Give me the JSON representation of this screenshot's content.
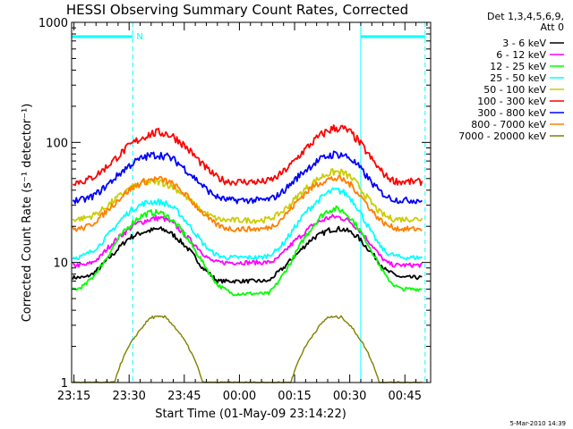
{
  "chart_data": {
    "type": "line",
    "title": "HESSI Observing Summary Count Rates, Corrected",
    "xlabel": "Start Time (01-May-09 23:14:22)",
    "ylabel": "Corrected Count Rate (s⁻¹ detector⁻¹)",
    "y_scale": "log",
    "ylim": [
      1,
      1000
    ],
    "y_ticks": [
      "1",
      "10",
      "100",
      "1000"
    ],
    "xlim": [
      "23:14:22",
      "00:52:00"
    ],
    "x_ticks": [
      "23:15",
      "23:30",
      "23:45",
      "00:00",
      "00:15",
      "00:30",
      "00:45"
    ],
    "grid": false,
    "legend_position": "right, outside plot",
    "legend_header": [
      "Det 1,3,4,5,6,9,",
      "Att 0"
    ],
    "annotation_text": "N",
    "night_segments": [
      [
        "23:14:22",
        "23:31:00"
      ],
      [
        "00:33:00",
        "00:50:30"
      ]
    ],
    "night_marker_color": "#00ffff",
    "timestamp": "5-Mar-2010 14:39",
    "sample_times": [
      "23:14",
      "23:16",
      "23:18",
      "23:20",
      "23:22",
      "23:24",
      "23:26",
      "23:28",
      "23:30",
      "23:32",
      "23:34",
      "23:36",
      "23:38",
      "23:40",
      "23:42",
      "23:44",
      "23:46",
      "23:48",
      "23:50",
      "23:52",
      "23:54",
      "23:56",
      "23:58",
      "00:00",
      "00:02",
      "00:04",
      "00:06",
      "00:08",
      "00:10",
      "00:12",
      "00:14",
      "00:16",
      "00:18",
      "00:20",
      "00:22",
      "00:24",
      "00:26",
      "00:28",
      "00:30",
      "00:32",
      "00:34",
      "00:36",
      "00:38",
      "00:40",
      "00:42",
      "00:44",
      "00:46",
      "00:48",
      "00:50"
    ],
    "series": [
      {
        "name": "3 - 6 keV",
        "color": "#000000",
        "values": [
          7.5,
          7.5,
          7.5,
          8,
          9,
          10.5,
          12,
          14,
          16,
          17,
          18,
          18.5,
          19,
          18.5,
          17,
          15,
          13,
          11,
          9,
          8,
          7,
          7,
          7,
          7,
          7,
          7,
          7,
          7,
          8,
          9,
          10.5,
          12,
          14,
          16,
          17,
          18.5,
          19,
          19,
          18,
          16.5,
          14,
          12,
          10,
          8.5,
          8,
          7.5,
          7.5,
          7.5,
          7.5
        ]
      },
      {
        "name": "6 - 12 keV",
        "color": "#ff00ff",
        "values": [
          9.5,
          9.5,
          9.5,
          10,
          11,
          13,
          15,
          17,
          19,
          21,
          22,
          23,
          23.5,
          23,
          21,
          18.5,
          16,
          14,
          12,
          10.5,
          10,
          10,
          10,
          10,
          10,
          10,
          10,
          10,
          10.5,
          12,
          14,
          16,
          18,
          20.5,
          22,
          23.5,
          24,
          23.5,
          22,
          19.5,
          16.5,
          14,
          11.5,
          10,
          9.5,
          9.5,
          9.5,
          9.5,
          9.5
        ]
      },
      {
        "name": "12 - 25 keV",
        "color": "#00ff00",
        "values": [
          6,
          6,
          6.5,
          7.5,
          9,
          11,
          14,
          17,
          20,
          23,
          25,
          26,
          26,
          25,
          22,
          19,
          15.5,
          12.5,
          10,
          8,
          6.5,
          6,
          5.5,
          5.5,
          5.5,
          5.5,
          5.5,
          5.5,
          6.5,
          8,
          10,
          13,
          16.5,
          20,
          24,
          27,
          28,
          27,
          24,
          20,
          16,
          12.5,
          9.5,
          7.5,
          6.5,
          6,
          6,
          6,
          6
        ]
      },
      {
        "name": "25 - 50 keV",
        "color": "#00ffff",
        "values": [
          11,
          11,
          11.5,
          12.5,
          14,
          16.5,
          19.5,
          23,
          26.5,
          29,
          31,
          32,
          32,
          31,
          28.5,
          25,
          21,
          17.5,
          14.5,
          12.5,
          11.5,
          11,
          11,
          11,
          11,
          11,
          11,
          11.5,
          12.5,
          14.5,
          17.5,
          21.5,
          26,
          30,
          34,
          38,
          40,
          39,
          35,
          29,
          22.5,
          17.5,
          14,
          12,
          11.5,
          11,
          11,
          11,
          11
        ]
      },
      {
        "name": "50 - 100 keV",
        "color": "#cccc00",
        "values": [
          23,
          23,
          23.5,
          24.5,
          26.5,
          29.5,
          33,
          37,
          41,
          44,
          46,
          47,
          47,
          45.5,
          42.5,
          38.5,
          34,
          30,
          26.5,
          24.5,
          23,
          22.5,
          22.5,
          22.5,
          22.5,
          22.5,
          22.5,
          23,
          24.5,
          27,
          31,
          36,
          41,
          46,
          51,
          55,
          57,
          56,
          52,
          45,
          37,
          31,
          26.5,
          24,
          23,
          23,
          23,
          23,
          23
        ]
      },
      {
        "name": "100 - 300 keV",
        "color": "#ff0000",
        "values": [
          47,
          47,
          48,
          51,
          56,
          63,
          72,
          82,
          93,
          103,
          112,
          118,
          121,
          119,
          112,
          101,
          88,
          76,
          65,
          57,
          51,
          48,
          47,
          47,
          47,
          47,
          47,
          48,
          51,
          57,
          65,
          76,
          88,
          101,
          114,
          125,
          132,
          131,
          122,
          106,
          88,
          72,
          60,
          52,
          48,
          47,
          47,
          47,
          47
        ]
      },
      {
        "name": "300 - 800 keV",
        "color": "#0000ff",
        "values": [
          33,
          33,
          33.5,
          35.5,
          39,
          44,
          50,
          57,
          64,
          70,
          75,
          78,
          79,
          77,
          72,
          65,
          57,
          50,
          43.5,
          38.5,
          35,
          33.5,
          33,
          33,
          33,
          33,
          33,
          33.5,
          35.5,
          39.5,
          45,
          52,
          59,
          66,
          72,
          77,
          80,
          79,
          74,
          65,
          55,
          46,
          39.5,
          35.5,
          33.5,
          33,
          33,
          33,
          33
        ]
      },
      {
        "name": "800 - 7000 keV",
        "color": "#ff8000",
        "values": [
          19,
          19,
          19.5,
          21,
          23.5,
          27,
          31,
          35.5,
          40,
          44,
          47,
          49,
          49.5,
          48,
          44.5,
          40,
          35,
          30,
          26,
          22.5,
          20.5,
          19.5,
          19,
          19,
          19,
          19,
          19,
          19.5,
          21,
          24,
          28,
          33,
          38,
          42.5,
          46.5,
          49,
          50,
          49,
          45,
          39,
          32.5,
          27,
          23,
          20.5,
          19.5,
          19,
          19,
          19,
          19
        ]
      },
      {
        "name": "7000 - 20000 keV",
        "color": "#808000",
        "values": [
          1,
          1,
          1,
          1,
          1,
          1,
          1,
          1.5,
          2,
          2.5,
          3,
          3.5,
          3.5,
          3.5,
          3,
          2.5,
          2,
          1.5,
          1,
          1,
          1,
          1,
          1,
          1,
          1,
          1,
          1,
          1,
          1,
          1,
          1,
          1.5,
          2,
          2.5,
          3,
          3.5,
          3.5,
          3.5,
          3,
          2.5,
          2,
          1.5,
          1,
          1,
          1,
          1,
          1,
          1,
          1
        ]
      }
    ]
  }
}
